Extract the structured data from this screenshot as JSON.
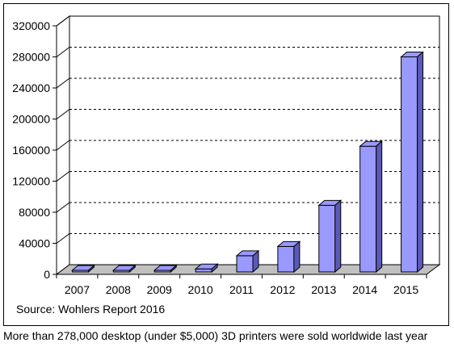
{
  "chart_data": {
    "type": "bar",
    "title": "",
    "xlabel": "",
    "ylabel": "",
    "categories": [
      "2007",
      "2008",
      "2009",
      "2010",
      "2011",
      "2012",
      "2013",
      "2014",
      "2015"
    ],
    "values": [
      0,
      1000,
      2500,
      7000,
      24000,
      36000,
      89000,
      165000,
      280000
    ],
    "ylim": [
      0,
      320000
    ],
    "yticks": [
      "0",
      "40000",
      "80000",
      "120000",
      "160000",
      "200000",
      "240000",
      "280000",
      "320000"
    ],
    "grid": true,
    "bar_color": "#9999ff",
    "bar_side_color": "#5a5ab8",
    "floor_color": "#c0c0c0"
  },
  "source_text": "Source: Wohlers Report 2016",
  "caption": "More than 278,000 desktop (under $5,000) 3D printers were sold worldwide last year"
}
